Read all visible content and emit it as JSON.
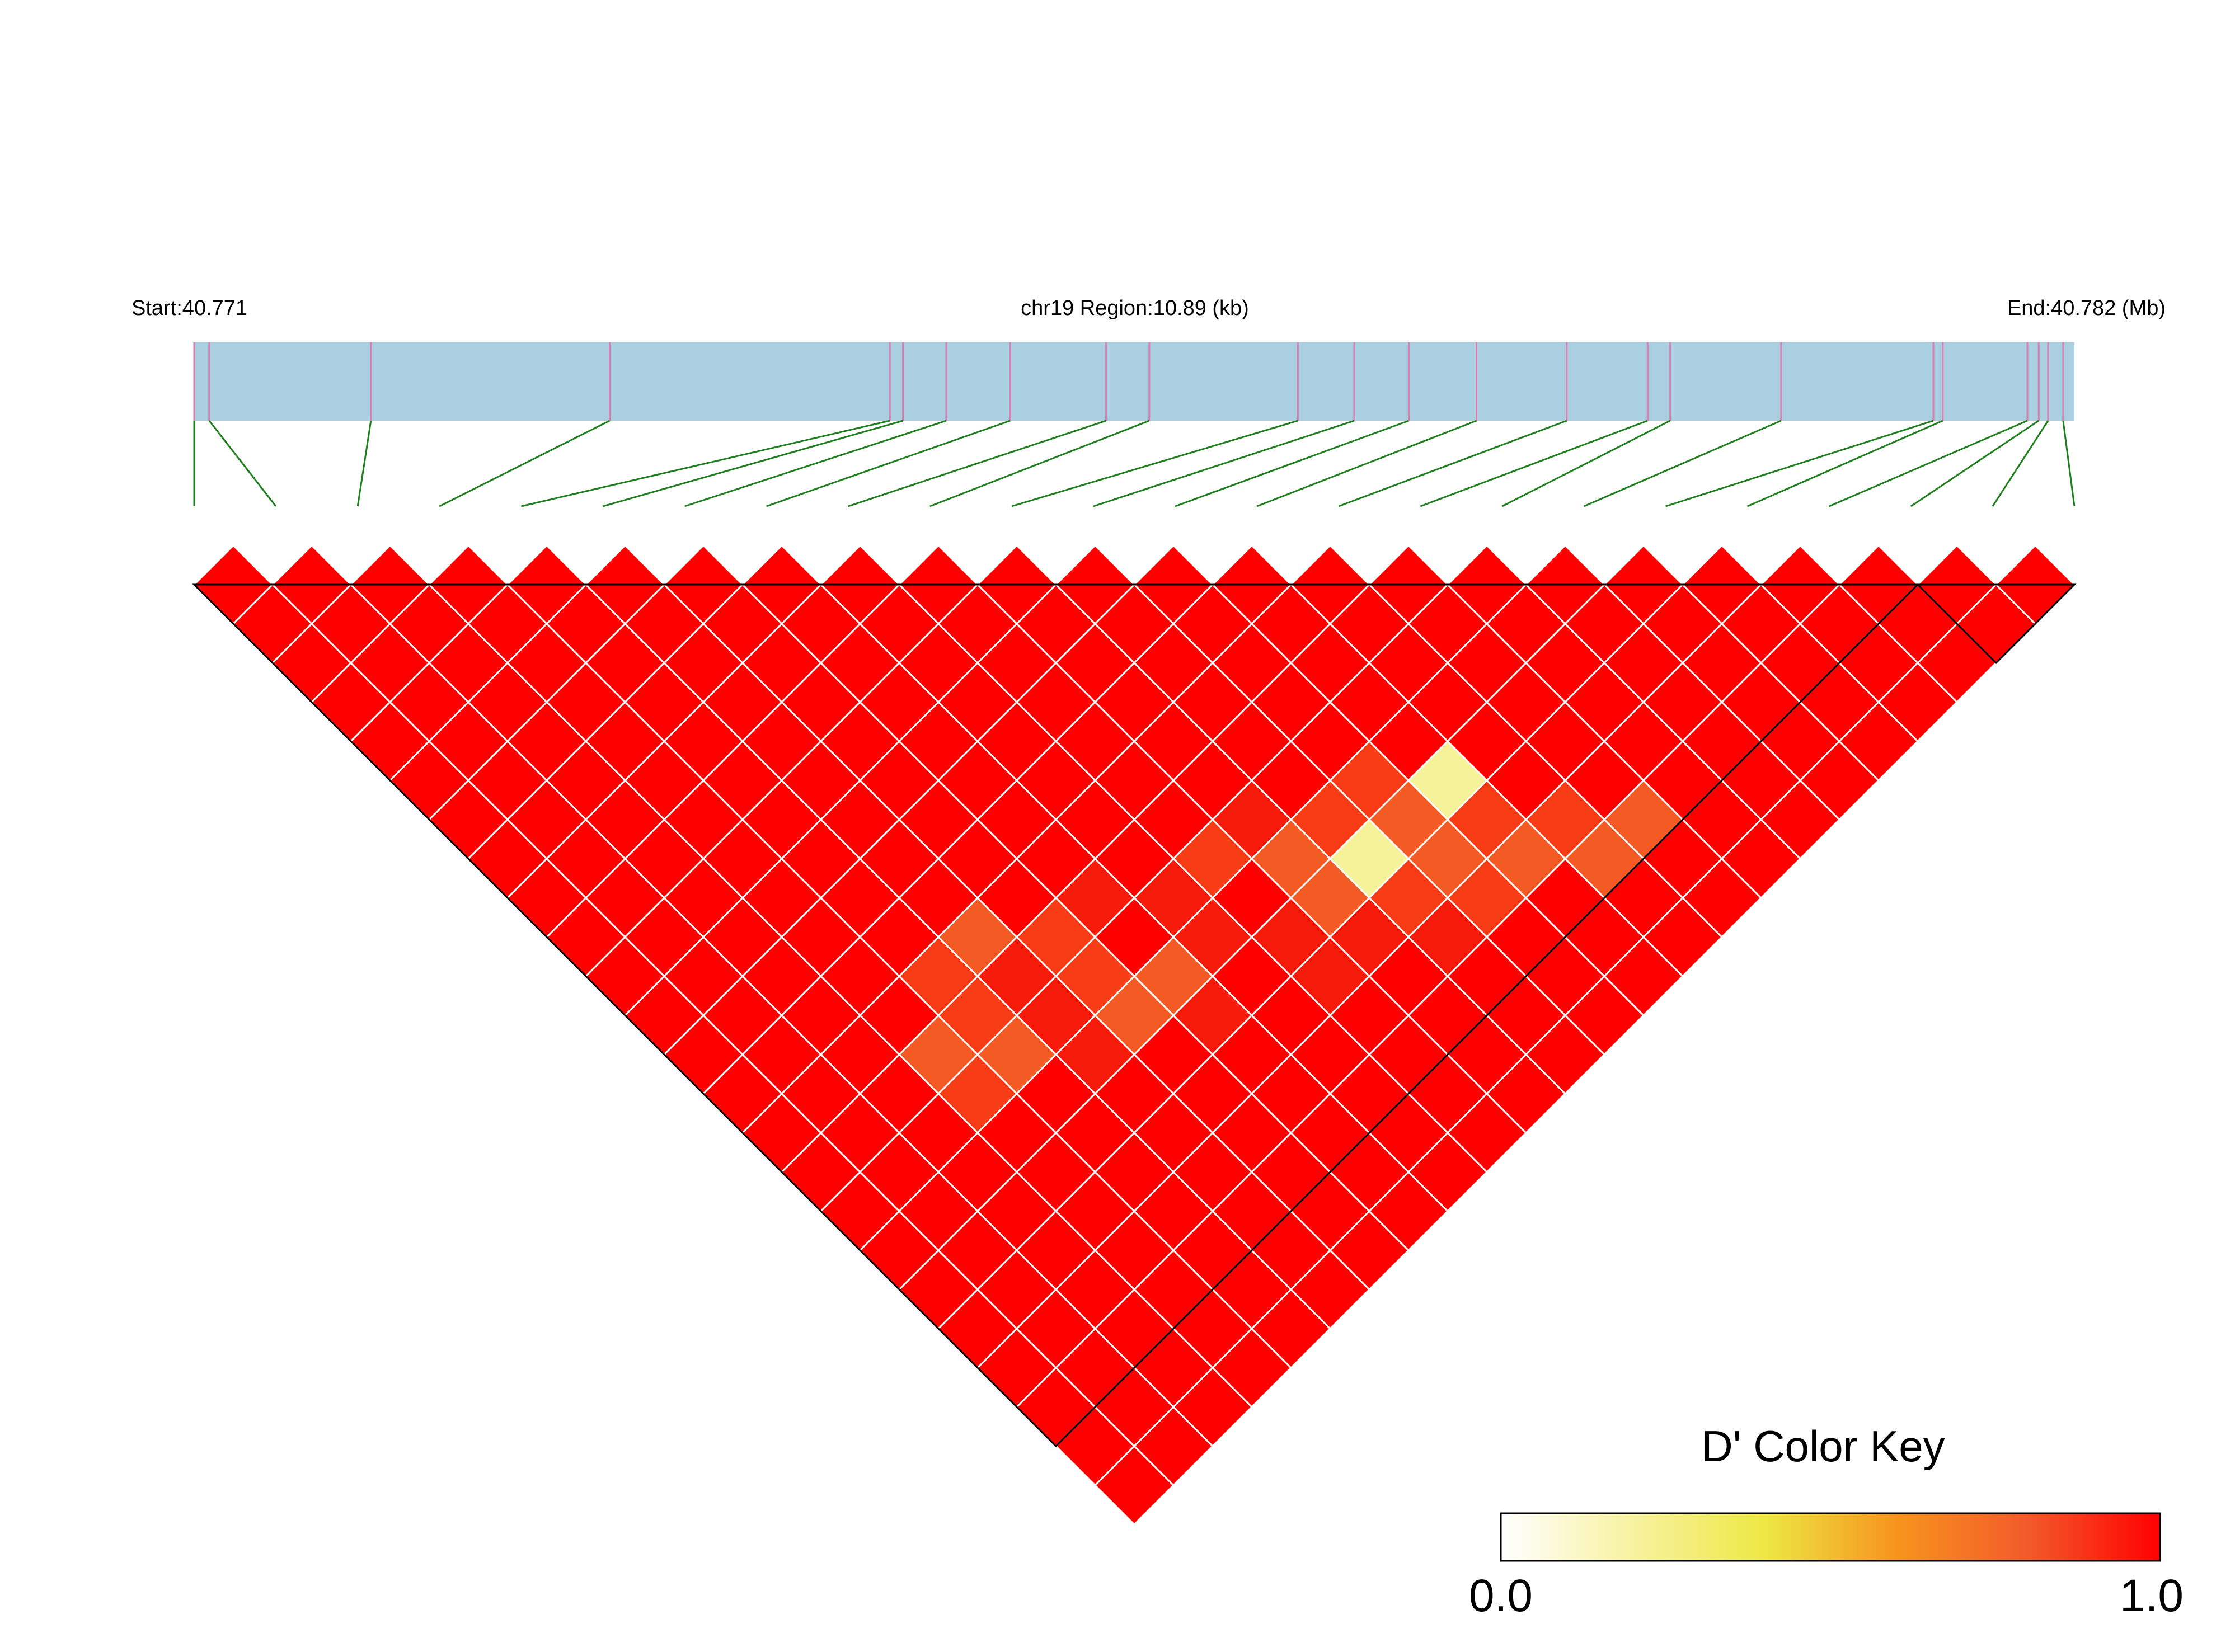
{
  "header": {
    "start_label": "Start:40.771",
    "region_label": "chr19 Region:10.89 (kb)",
    "end_label": "End:40.782 (Mb)"
  },
  "legend": {
    "title": "D' Color Key",
    "min_label": "0.0",
    "max_label": "1.0",
    "gradient": [
      "#ffffff",
      "#f7f2a0",
      "#ede844",
      "#f7941d",
      "#f25a2a",
      "#ff0000"
    ]
  },
  "colors": {
    "gene_bar": "#a9cfe1",
    "snp_tick": "#d97fb4",
    "connector": "#1f7f1f",
    "high_ld": "#ff0000"
  },
  "chart_data": {
    "type": "heatmap",
    "description_units": "pairwise D' between SNPs (0.0 to 1.0)",
    "chromosome": "chr19",
    "region_start_mb": 40.771,
    "region_end_mb": 40.782,
    "region_size_kb": 10.89,
    "n_snps": 24,
    "snp_relative_positions": [
      0.0,
      0.008,
      0.094,
      0.221,
      0.37,
      0.377,
      0.4,
      0.434,
      0.485,
      0.508,
      0.587,
      0.617,
      0.646,
      0.682,
      0.73,
      0.773,
      0.785,
      0.844,
      0.925,
      0.93,
      0.975,
      0.981,
      0.986,
      0.994
    ],
    "default_value": 1.0,
    "cells": [
      {
        "i": 1,
        "j": 2,
        "value": 1.0
      },
      {
        "i": 12,
        "j": 21,
        "value": 0.9
      },
      {
        "i": 13,
        "j": 20,
        "value": 0.75
      },
      {
        "i": 13,
        "j": 21,
        "value": 0.8
      },
      {
        "i": 12,
        "j": 20,
        "value": 0.8
      },
      {
        "i": 11,
        "j": 19,
        "value": 0.75
      },
      {
        "i": 12,
        "j": 19,
        "value": 0.35
      },
      {
        "i": 12,
        "j": 18,
        "value": 0.8
      },
      {
        "i": 11,
        "j": 18,
        "value": 0.75
      },
      {
        "i": 10,
        "j": 17,
        "value": 0.8
      },
      {
        "i": 11,
        "j": 17,
        "value": 0.9
      },
      {
        "i": 13,
        "j": 19,
        "value": 0.75
      },
      {
        "i": 14,
        "j": 19,
        "value": 0.35
      },
      {
        "i": 14,
        "j": 20,
        "value": 0.8
      },
      {
        "i": 13,
        "j": 18,
        "value": 0.8
      },
      {
        "i": 14,
        "j": 21,
        "value": 0.75
      },
      {
        "i": 15,
        "j": 21,
        "value": 0.8
      },
      {
        "i": 15,
        "j": 22,
        "value": 0.75
      },
      {
        "i": 16,
        "j": 22,
        "value": 0.75
      },
      {
        "i": 9,
        "j": 17,
        "value": 0.9
      },
      {
        "i": 9,
        "j": 18,
        "value": 0.9
      },
      {
        "i": 8,
        "j": 18,
        "value": 0.75
      },
      {
        "i": 8,
        "j": 19,
        "value": 0.9
      },
      {
        "i": 7,
        "j": 17,
        "value": 0.8
      },
      {
        "i": 7,
        "j": 18,
        "value": 0.75
      },
      {
        "i": 8,
        "j": 16,
        "value": 0.9
      },
      {
        "i": 7,
        "j": 16,
        "value": 0.8
      },
      {
        "i": 6,
        "j": 16,
        "value": 0.9
      },
      {
        "i": 6,
        "j": 17,
        "value": 0.9
      },
      {
        "i": 6,
        "j": 15,
        "value": 0.75
      },
      {
        "i": 5,
        "j": 15,
        "value": 0.8
      },
      {
        "i": 5,
        "j": 16,
        "value": 0.8
      },
      {
        "i": 5,
        "j": 17,
        "value": 0.75
      },
      {
        "i": 4,
        "j": 16,
        "value": 0.75
      },
      {
        "i": 4,
        "j": 17,
        "value": 0.8
      },
      {
        "i": 6,
        "j": 18,
        "value": 0.9
      },
      {
        "i": 10,
        "j": 19,
        "value": 0.9
      },
      {
        "i": 10,
        "j": 20,
        "value": 0.9
      },
      {
        "i": 11,
        "j": 20,
        "value": 0.9
      }
    ],
    "blocks": [
      {
        "start": 1,
        "end": 22
      },
      {
        "start": 23,
        "end": 24
      }
    ],
    "legend_range": [
      0.0,
      1.0
    ]
  }
}
